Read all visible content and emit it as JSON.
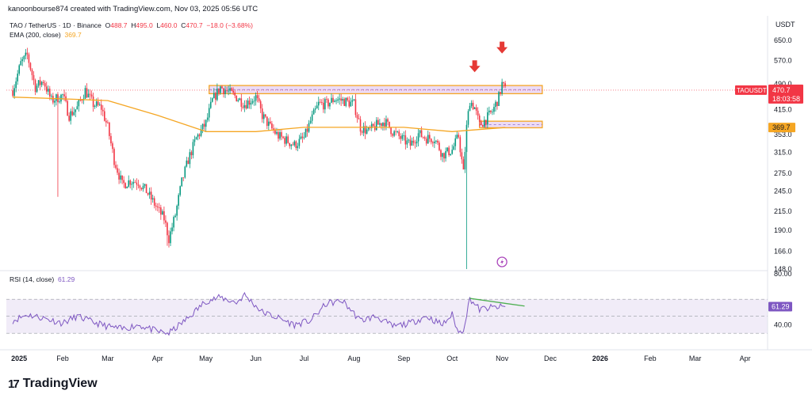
{
  "header": {
    "attribution": "kanoonbourse874 created with TradingView.com, Nov 03, 2025 05:56 UTC"
  },
  "legend": {
    "symbol": "TAO / TetherUS · 1D · Binance",
    "open_label": "O",
    "open": "488.7",
    "high_label": "H",
    "high": "495.0",
    "low_label": "L",
    "low": "460.0",
    "close_label": "C",
    "close": "470.7",
    "change": "−18.0 (−3.68%)",
    "ema_label": "EMA (200, close)",
    "ema_value": "369.7",
    "rsi_label": "RSI (14, close)",
    "rsi_value": "61.29"
  },
  "price_axis": {
    "currency": "USDT",
    "ticks": [
      "650.0",
      "570.0",
      "490.0",
      "415.0",
      "353.0",
      "315.0",
      "275.0",
      "245.0",
      "215.0",
      "190.0",
      "166.0",
      "148.0"
    ],
    "current_symbol": "TAOUSDT",
    "current_price": "470.7",
    "countdown": "18:03:58",
    "ema_badge": "369.7"
  },
  "rsi_axis": {
    "ticks": [
      "80.00",
      "40.00"
    ],
    "badge": "61.29"
  },
  "time_axis": {
    "labels": [
      "2025",
      "Feb",
      "Mar",
      "Apr",
      "May",
      "Jun",
      "Jul",
      "Aug",
      "Sep",
      "Oct",
      "Nov",
      "Dec",
      "2026",
      "Feb",
      "Mar",
      "Apr"
    ]
  },
  "brand": {
    "logo": "17",
    "name": "TradingView"
  },
  "colors": {
    "up": "#089981",
    "down": "#f23645",
    "ema": "#f5a623",
    "rsi": "#7e57c2",
    "zone_fill": "#e9d5f3",
    "zone_border": "#f5a623",
    "arrow": "#e53935",
    "divergence": "#4caf50"
  },
  "chart_data": {
    "type": "candlestick",
    "title": "TAO / TetherUS · 1D · Binance",
    "y_scale": "log",
    "ylim": [
      148,
      680
    ],
    "grid": false,
    "x_range": [
      "2024-12-28",
      "2026-04-15"
    ],
    "close_series": {
      "dates": [
        "2025-01-01",
        "2025-01-06",
        "2025-01-10",
        "2025-01-15",
        "2025-01-20",
        "2025-01-25",
        "2025-02-01",
        "2025-02-05",
        "2025-02-10",
        "2025-02-15",
        "2025-02-20",
        "2025-02-25",
        "2025-03-01",
        "2025-03-05",
        "2025-03-10",
        "2025-03-15",
        "2025-03-20",
        "2025-03-25",
        "2025-04-01",
        "2025-04-05",
        "2025-04-08",
        "2025-04-12",
        "2025-04-16",
        "2025-04-20",
        "2025-04-25",
        "2025-05-01",
        "2025-05-05",
        "2025-05-10",
        "2025-05-15",
        "2025-05-20",
        "2025-05-25",
        "2025-06-01",
        "2025-06-05",
        "2025-06-10",
        "2025-06-15",
        "2025-06-20",
        "2025-06-25",
        "2025-07-01",
        "2025-07-05",
        "2025-07-10",
        "2025-07-15",
        "2025-07-20",
        "2025-07-25",
        "2025-08-01",
        "2025-08-05",
        "2025-08-10",
        "2025-08-15",
        "2025-08-20",
        "2025-08-25",
        "2025-09-01",
        "2025-09-05",
        "2025-09-10",
        "2025-09-15",
        "2025-09-20",
        "2025-09-25",
        "2025-10-01",
        "2025-10-05",
        "2025-10-08",
        "2025-10-10",
        "2025-10-12",
        "2025-10-15",
        "2025-10-18",
        "2025-10-22",
        "2025-10-26",
        "2025-10-30",
        "2025-11-01",
        "2025-11-03"
      ],
      "close": [
        470,
        560,
        590,
        480,
        500,
        440,
        455,
        400,
        420,
        470,
        430,
        420,
        370,
        300,
        255,
        262,
        260,
        245,
        218,
        205,
        180,
        210,
        260,
        300,
        345,
        380,
        440,
        480,
        465,
        450,
        430,
        450,
        400,
        370,
        350,
        340,
        330,
        345,
        385,
        430,
        430,
        445,
        440,
        430,
        370,
        360,
        375,
        385,
        360,
        340,
        330,
        355,
        345,
        345,
        310,
        320,
        350,
        275,
        370,
        440,
        420,
        375,
        390,
        410,
        450,
        490,
        470.7
      ],
      "low_spikes": [
        {
          "date": "2025-01-29",
          "low": 236
        },
        {
          "date": "2025-04-07",
          "low": 172
        },
        {
          "date": "2025-10-10",
          "low": 148
        }
      ]
    },
    "ema_200": {
      "dates": [
        "2025-01-01",
        "2025-02-01",
        "2025-03-01",
        "2025-04-01",
        "2025-05-01",
        "2025-06-01",
        "2025-07-01",
        "2025-08-01",
        "2025-09-01",
        "2025-10-01",
        "2025-11-03"
      ],
      "values": [
        450,
        445,
        440,
        400,
        360,
        360,
        370,
        370,
        370,
        360,
        369.7
      ]
    },
    "zones": [
      {
        "type": "resistance",
        "y_low": 460,
        "y_high": 485,
        "x_start": "2025-05-03",
        "x_end": "2025-11-26"
      },
      {
        "type": "support",
        "y_low": 369,
        "y_high": 385,
        "x_start": "2025-10-18",
        "x_end": "2025-11-26"
      }
    ],
    "arrows": [
      {
        "date": "2025-10-15",
        "price": 545
      },
      {
        "date": "2025-11-01",
        "price": 615
      }
    ],
    "rsi": {
      "name": "RSI (14, close)",
      "ylim": [
        20,
        85
      ],
      "band": [
        30,
        70
      ],
      "dates": [
        "2025-01-01",
        "2025-01-10",
        "2025-01-20",
        "2025-02-01",
        "2025-02-10",
        "2025-02-20",
        "2025-03-01",
        "2025-03-10",
        "2025-03-20",
        "2025-04-01",
        "2025-04-08",
        "2025-04-20",
        "2025-05-01",
        "2025-05-10",
        "2025-05-20",
        "2025-05-25",
        "2025-06-05",
        "2025-06-15",
        "2025-06-25",
        "2025-07-05",
        "2025-07-15",
        "2025-07-25",
        "2025-08-05",
        "2025-08-15",
        "2025-08-25",
        "2025-09-05",
        "2025-09-15",
        "2025-09-25",
        "2025-10-01",
        "2025-10-05",
        "2025-10-08",
        "2025-10-12",
        "2025-10-18",
        "2025-10-25",
        "2025-11-03"
      ],
      "values": [
        45,
        52,
        48,
        42,
        50,
        43,
        38,
        35,
        40,
        32,
        30,
        48,
        68,
        72,
        66,
        75,
        55,
        48,
        40,
        45,
        65,
        68,
        45,
        50,
        38,
        42,
        50,
        40,
        52,
        30,
        35,
        71,
        58,
        60,
        61.29
      ],
      "divergence_line": {
        "start": {
          "date": "2025-10-12",
          "value": 71
        },
        "end": {
          "date": "2025-11-15",
          "value": 62
        }
      }
    }
  }
}
